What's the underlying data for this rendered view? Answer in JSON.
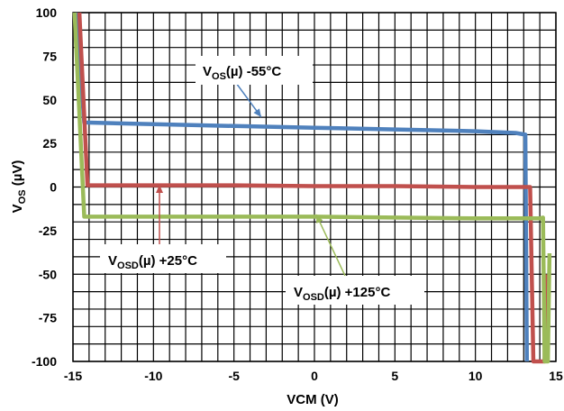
{
  "chart_data": {
    "type": "line",
    "xlabel": "VCM (V)",
    "ylabel_main": "V",
    "ylabel_sub": "OS",
    "ylabel_unit": " (µV)",
    "xlim": [
      -15,
      15
    ],
    "ylim": [
      -100,
      100
    ],
    "x_ticks": [
      -15,
      -10,
      -5,
      0,
      5,
      10,
      15
    ],
    "y_ticks": [
      100,
      75,
      50,
      25,
      0,
      -25,
      -50,
      -75,
      -100
    ],
    "grid": true,
    "series": [
      {
        "color": "#4f81bd",
        "points": [
          [
            -14.8,
            100
          ],
          [
            -14.3,
            37
          ],
          [
            -10,
            36
          ],
          [
            -5,
            35
          ],
          [
            0,
            34
          ],
          [
            5,
            33
          ],
          [
            10,
            32
          ],
          [
            12.5,
            31
          ],
          [
            13.1,
            30
          ],
          [
            13.2,
            -100
          ]
        ]
      },
      {
        "color": "#c0504d",
        "points": [
          [
            -14.6,
            100
          ],
          [
            -14.1,
            1
          ],
          [
            -10,
            1
          ],
          [
            -5,
            1
          ],
          [
            0,
            0.5
          ],
          [
            5,
            0.5
          ],
          [
            10,
            0
          ],
          [
            13.4,
            0
          ],
          [
            13.6,
            -100
          ],
          [
            14.3,
            -100
          ],
          [
            14.4,
            -50
          ]
        ]
      },
      {
        "color": "#9bbb59",
        "points": [
          [
            -14.9,
            100
          ],
          [
            -14.3,
            -17
          ],
          [
            -10,
            -17
          ],
          [
            -5,
            -17
          ],
          [
            0,
            -17
          ],
          [
            5,
            -17.5
          ],
          [
            10,
            -18
          ],
          [
            14.0,
            -18
          ],
          [
            14.2,
            -17.5
          ],
          [
            14.3,
            -100
          ],
          [
            14.5,
            -100
          ],
          [
            14.6,
            -38
          ]
        ]
      }
    ],
    "annotations": [
      {
        "main": "V",
        "sub": "OS",
        "rest": "(µ) -55°C",
        "color": "#4f81bd"
      },
      {
        "main": "V",
        "sub": "OSD",
        "rest": "(µ) +25°C",
        "color": "#c0504d"
      },
      {
        "main": "V",
        "sub": "OSD",
        "rest": "(µ) +125°C",
        "color": "#9bbb59"
      }
    ]
  }
}
